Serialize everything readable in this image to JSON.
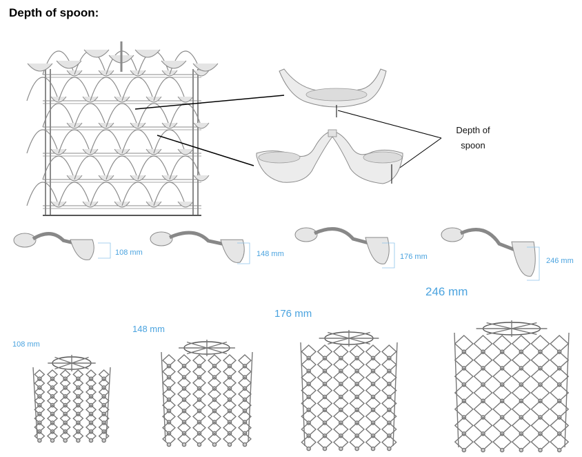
{
  "title": "Depth of spoon:",
  "callout": {
    "line1": "Depth of",
    "line2": "spoon"
  },
  "spoon_depths": [
    "108 mm",
    "148 mm",
    "176 mm",
    "246 mm"
  ],
  "structure_labels": [
    "108 mm",
    "148 mm",
    "176 mm",
    "246 mm"
  ],
  "colors": {
    "accent": "#4aa3df",
    "line": "#000000",
    "model_fill": "#e9e9e9",
    "model_stroke": "#8a8a8a"
  }
}
